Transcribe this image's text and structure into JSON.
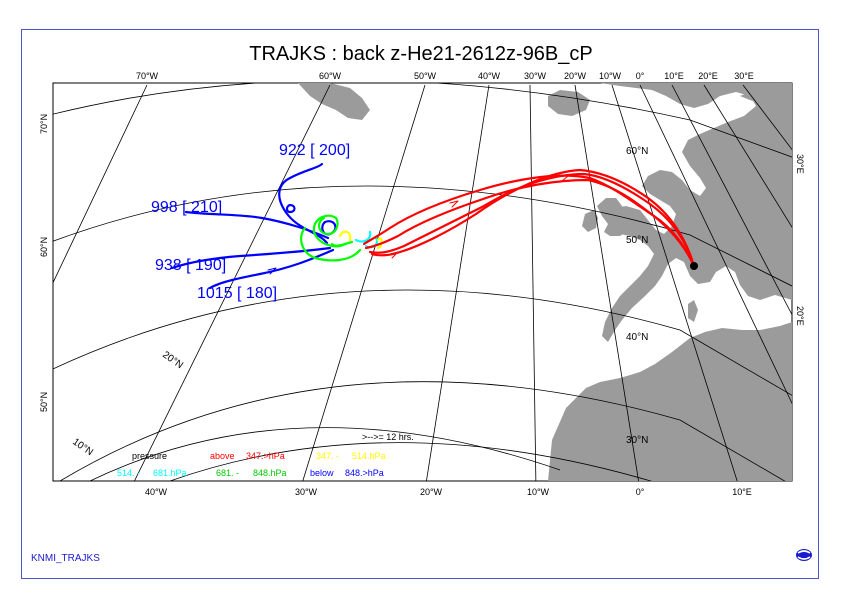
{
  "title": "TRAJKS : back z-He21-2612z-96B_cP",
  "footer": "KNMI_TRAJKS",
  "colors": {
    "land": "#9b9b9b",
    "grid": "#000000",
    "above": "#ff0000",
    "band2": "#ffff00",
    "band3": "#00ffff",
    "band4": "#00ff00",
    "below": "#0000ff",
    "frame": "#4a55c8"
  },
  "lon_labels_top": [
    "70°W",
    "60°W",
    "50°W",
    "40°W",
    "30°W",
    "20°W",
    "10°W",
    "0°",
    "10°E",
    "20°E",
    "30°E"
  ],
  "lon_labels_bottom": [
    "40°W",
    "30°W",
    "20°W",
    "10°W",
    "0°",
    "10°E"
  ],
  "lat_labels_left": [
    "70°N",
    "60°N",
    "50°N"
  ],
  "lat_labels_right": [
    "30°E",
    "20°E"
  ],
  "lat_labels_inner": [
    "60°N",
    "50°N",
    "40°N",
    "30°N",
    "20°N",
    "10°N"
  ],
  "start_labels": [
    {
      "text": "922 [ 200]"
    },
    {
      "text": "998 [ 210]"
    },
    {
      "text": "938 [ 190]"
    },
    {
      "text": "1015 [ 180]"
    }
  ],
  "legend": {
    "interval": ">-->= 12 hrs.",
    "pressure": "pressure",
    "above": "above",
    "above_range": "347.>hPa",
    "band2": "347. -",
    "band2_range": "514.hPa",
    "band3": "514. -",
    "band3_range": "681.hPa",
    "band4": "681. -",
    "band4_range": "848.hPa",
    "below": "below",
    "below_range": "848.>hPa"
  }
}
